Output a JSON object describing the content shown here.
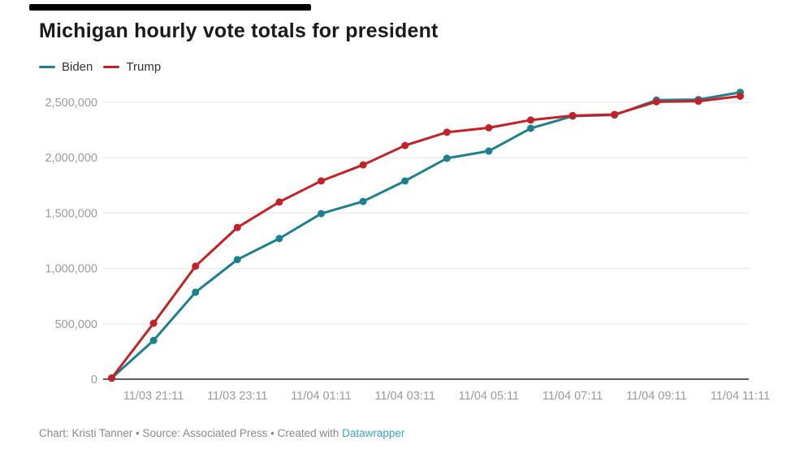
{
  "header": {
    "title": "Michigan hourly vote totals for president"
  },
  "legend": [
    {
      "label": "Biden",
      "color": "#1d808e"
    },
    {
      "label": "Trump",
      "color": "#c42127"
    }
  ],
  "colors": {
    "biden": "#1d808e",
    "trump": "#c42127",
    "gridline": "#e5e5e5",
    "axis_line": "#2b2b2b",
    "tick_text": "#9b9b9b",
    "title_text": "#1a1a1a",
    "top_bar": "#000000"
  },
  "chart_data": {
    "type": "line",
    "title": "Michigan hourly vote totals for president",
    "xlabel": "",
    "ylabel": "",
    "grid": true,
    "legend_position": "top-left",
    "ylim": [
      0,
      2500000
    ],
    "x": [
      "11/03 20:11",
      "11/03 21:11",
      "11/03 22:11",
      "11/03 23:11",
      "11/04 00:11",
      "11/04 01:11",
      "11/04 02:11",
      "11/04 03:11",
      "11/04 04:11",
      "11/04 05:11",
      "11/04 06:11",
      "11/04 07:11",
      "11/04 08:11",
      "11/04 09:11",
      "11/04 10:11",
      "11/04 11:11"
    ],
    "x_tick_indices": [
      1,
      3,
      5,
      7,
      9,
      11,
      13,
      15
    ],
    "x_tick_labels": [
      "11/03 21:11",
      "11/03 23:11",
      "11/04 01:11",
      "11/04 03:11",
      "11/04 05:11",
      "11/04 07:11",
      "11/04 09:11",
      "11/04 11:11"
    ],
    "y_ticks": [
      0,
      500000,
      1000000,
      1500000,
      2000000,
      2500000
    ],
    "y_tick_labels": [
      "0",
      "500,000",
      "1,000,000",
      "1,500,000",
      "2,000,000",
      "2,500,000"
    ],
    "series": [
      {
        "name": "Biden",
        "color": "#1d808e",
        "values": [
          10000,
          350000,
          785000,
          1080000,
          1270000,
          1495000,
          1605000,
          1790000,
          1995000,
          2060000,
          2265000,
          2375000,
          2385000,
          2520000,
          2525000,
          2590000
        ]
      },
      {
        "name": "Trump",
        "color": "#c42127",
        "values": [
          10000,
          505000,
          1020000,
          1370000,
          1600000,
          1790000,
          1935000,
          2110000,
          2230000,
          2270000,
          2340000,
          2380000,
          2390000,
          2505000,
          2510000,
          2555000
        ]
      }
    ]
  },
  "footer": {
    "text_prefix": "Chart: Kristi Tanner • Source: Associated Press • Created with ",
    "link_label": "Datawrapper",
    "link_color": "#3aa5c8"
  }
}
